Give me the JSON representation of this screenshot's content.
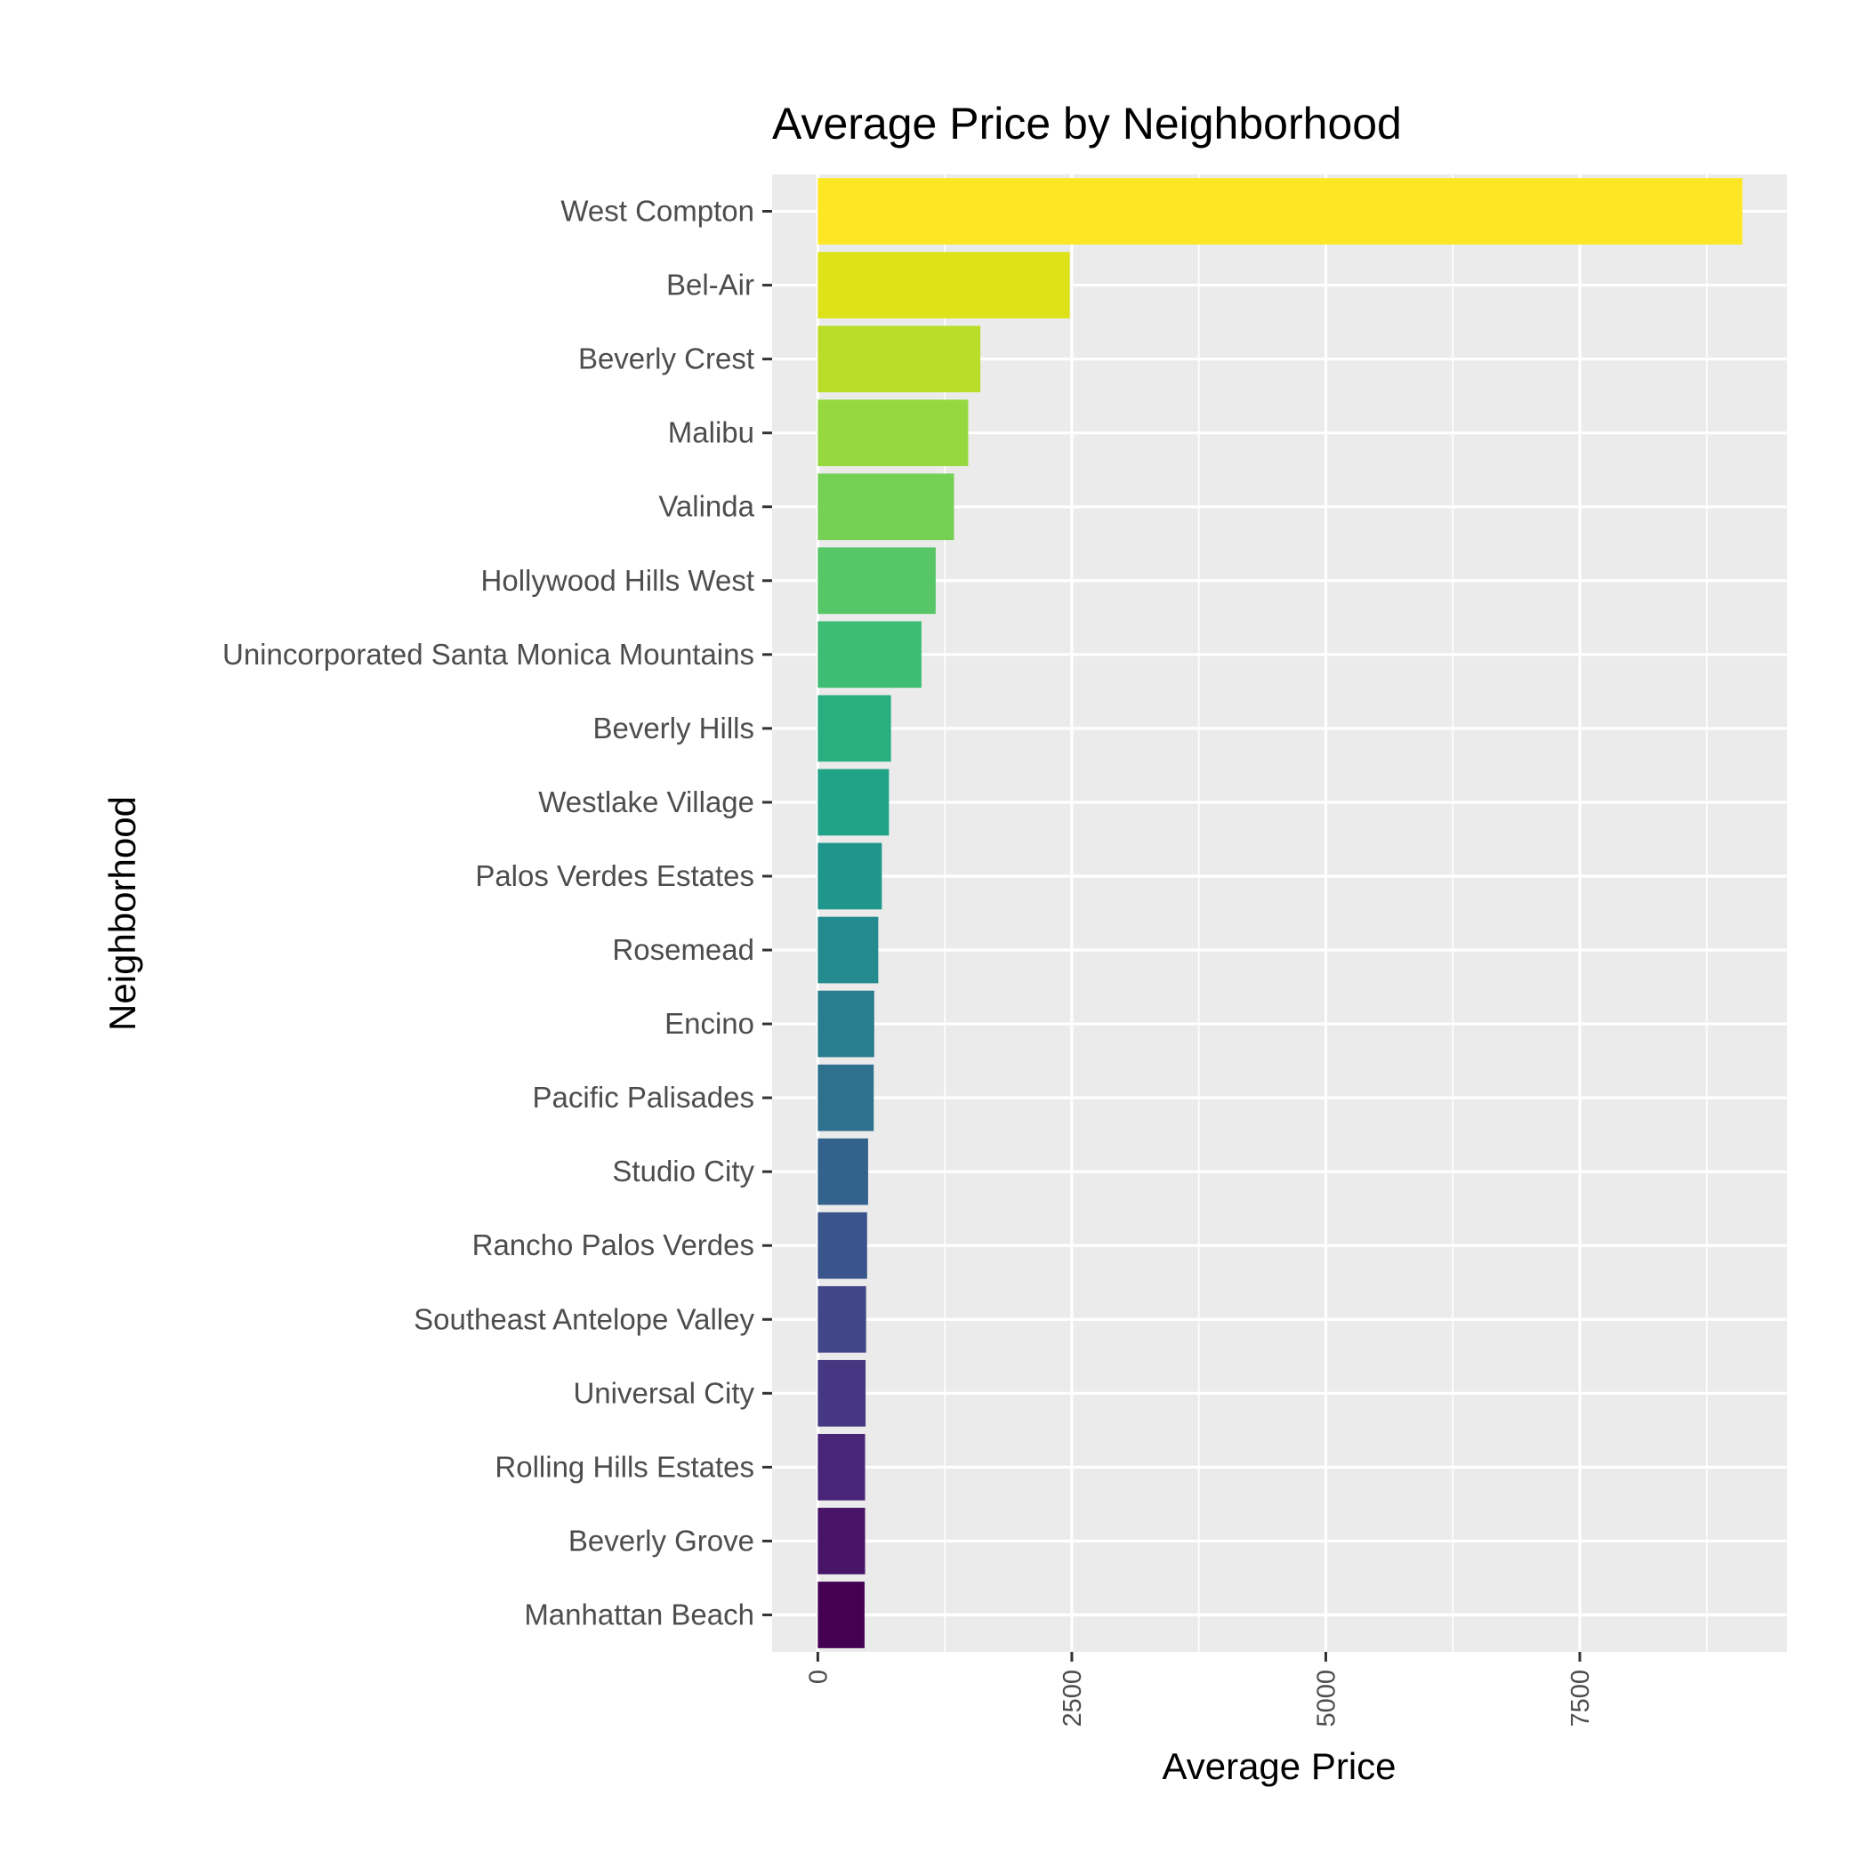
{
  "chart_data": {
    "type": "bar",
    "orientation": "horizontal",
    "title": "Average Price by Neighborhood",
    "xlabel": "Average Price",
    "ylabel": "Neighborhood",
    "xlim": [
      -450,
      9540
    ],
    "x_ticks": [
      0,
      2500,
      5000,
      7500
    ],
    "x_tick_labels": [
      "0",
      "2500",
      "5000",
      "7500"
    ],
    "grid": true,
    "legend": "none",
    "categories": [
      "West Compton",
      "Bel-Air",
      "Beverly Crest",
      "Malibu",
      "Valinda",
      "Hollywood Hills West",
      "Unincorporated Santa Monica Mountains",
      "Beverly Hills",
      "Westlake Village",
      "Palos Verdes Estates",
      "Rosemead",
      "Encino",
      "Pacific Palisades",
      "Studio City",
      "Rancho Palos Verdes",
      "Southeast Antelope Valley",
      "Universal City",
      "Rolling Hills Estates",
      "Beverly Grove",
      "Manhattan Beach"
    ],
    "values": [
      9100,
      2480,
      1600,
      1480,
      1340,
      1160,
      1020,
      720,
      700,
      630,
      595,
      555,
      550,
      495,
      485,
      475,
      470,
      465,
      465,
      460
    ],
    "colors": [
      "#fde725",
      "#dde318",
      "#bade28",
      "#95d840",
      "#75d054",
      "#56c667",
      "#3dbc74",
      "#29af7f",
      "#20a386",
      "#1f968b",
      "#238a8d",
      "#287d8e",
      "#2d718e",
      "#33638d",
      "#39558c",
      "#404688",
      "#453781",
      "#482576",
      "#481467",
      "#440154"
    ]
  },
  "colors": {
    "panel_background": "#ebebeb",
    "grid_line": "#ffffff",
    "tick_mark": "#333333"
  }
}
